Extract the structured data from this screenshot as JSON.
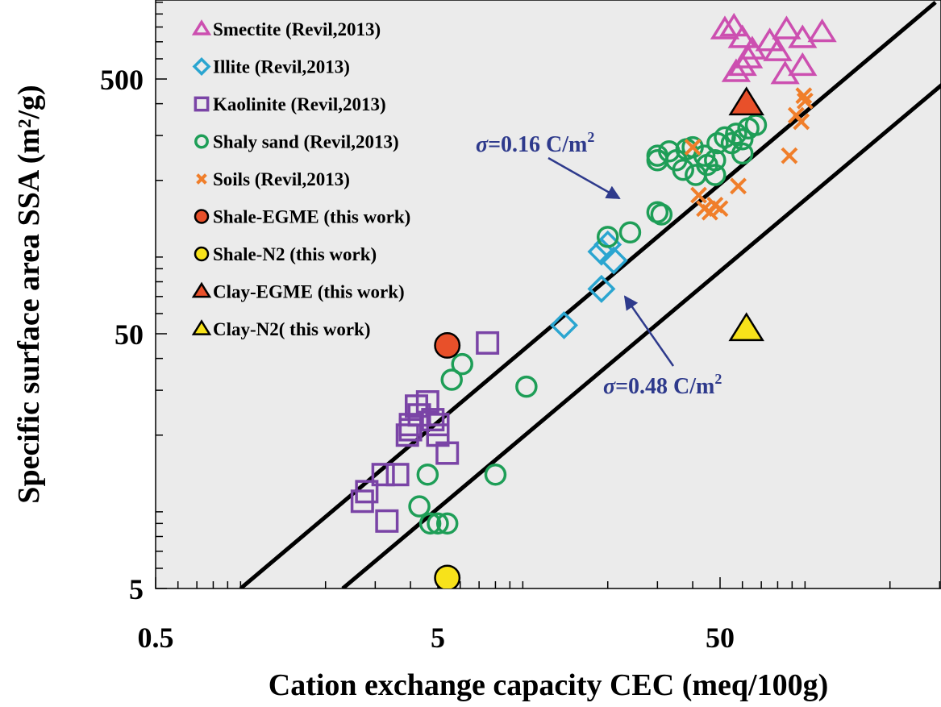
{
  "chart_data": {
    "type": "scatter",
    "xlabel": "Cation exchange capacity CEC (meq/100g)",
    "ylabel": "Specific surface area SSA (m²/g)",
    "xscale": "log",
    "yscale": "log",
    "xlim": [
      0.5,
      500
    ],
    "ylim": [
      5,
      1000
    ],
    "xticks": [
      {
        "value": 0.5,
        "label": "0.5"
      },
      {
        "value": 5,
        "label": "5"
      },
      {
        "value": 50,
        "label": "50"
      }
    ],
    "yticks": [
      {
        "value": 5,
        "label": "5"
      },
      {
        "value": 50,
        "label": "50"
      },
      {
        "value": 500,
        "label": "500"
      }
    ],
    "background": "#ebebeb",
    "grid": false,
    "legend_position": "top-left",
    "series": [
      {
        "name": "Smectite (Revil,2013)",
        "marker": "triangle-open",
        "color": "#cc4fb0",
        "points": [
          [
            52,
            780
          ],
          [
            56,
            800
          ],
          [
            60,
            720
          ],
          [
            65,
            650
          ],
          [
            63,
            600
          ],
          [
            75,
            700
          ],
          [
            86,
            780
          ],
          [
            80,
            640
          ],
          [
            98,
            720
          ],
          [
            115,
            760
          ],
          [
            98,
            560
          ],
          [
            85,
            520
          ],
          [
            57,
            530
          ],
          [
            60,
            560
          ]
        ]
      },
      {
        "name": "Illite (Revil,2013)",
        "marker": "diamond-open",
        "color": "#2aa5d0",
        "points": [
          [
            14,
            54
          ],
          [
            19,
            105
          ],
          [
            20,
            112
          ],
          [
            21,
            97
          ],
          [
            19,
            75
          ]
        ]
      },
      {
        "name": "Kaolinite (Revil,2013)",
        "marker": "square-open",
        "color": "#7a44a6",
        "points": [
          [
            7.5,
            46
          ],
          [
            4.6,
            27
          ],
          [
            4.2,
            26
          ],
          [
            4.3,
            24
          ],
          [
            4.8,
            23
          ],
          [
            5,
            22
          ],
          [
            5,
            20
          ],
          [
            4,
            21
          ],
          [
            4,
            22
          ],
          [
            3.9,
            20
          ],
          [
            5.4,
            17
          ],
          [
            3.2,
            14
          ],
          [
            3.6,
            14
          ],
          [
            2.8,
            12
          ],
          [
            2.7,
            11
          ],
          [
            3.3,
            9.2
          ]
        ]
      },
      {
        "name": "Shaly sand (Revil,2013)",
        "marker": "circle-open",
        "color": "#1e9e57",
        "points": [
          [
            6.1,
            38
          ],
          [
            5.6,
            33
          ],
          [
            10.3,
            31
          ],
          [
            4.6,
            14
          ],
          [
            8,
            14
          ],
          [
            4.3,
            10.5
          ],
          [
            4.7,
            9
          ],
          [
            5,
            9
          ],
          [
            5.4,
            9
          ],
          [
            20,
            120
          ],
          [
            24,
            125
          ],
          [
            30,
            150
          ],
          [
            31,
            147
          ],
          [
            30,
            240
          ],
          [
            30,
            250
          ],
          [
            33,
            260
          ],
          [
            38,
            265
          ],
          [
            40,
            270
          ],
          [
            35,
            240
          ],
          [
            37,
            220
          ],
          [
            41,
            210
          ],
          [
            44,
            250
          ],
          [
            45,
            230
          ],
          [
            48,
            240
          ],
          [
            48,
            210
          ],
          [
            52,
            295
          ],
          [
            55,
            280
          ],
          [
            49,
            280
          ],
          [
            57,
            305
          ],
          [
            60,
            290
          ],
          [
            60,
            255
          ],
          [
            63,
            320
          ],
          [
            67,
            330
          ]
        ]
      },
      {
        "name": "Soils (Revil,2013)",
        "marker": "x",
        "color": "#f07e2a",
        "points": [
          [
            42,
            175
          ],
          [
            44,
            155
          ],
          [
            46,
            150
          ],
          [
            48,
            160
          ],
          [
            50,
            155
          ],
          [
            58,
            190
          ],
          [
            40,
            270
          ],
          [
            88,
            250
          ],
          [
            97,
            340
          ],
          [
            93,
            360
          ],
          [
            100,
            410
          ],
          [
            99,
            430
          ]
        ]
      },
      {
        "name": "Shale-EGME (this work)",
        "marker": "circle-filled",
        "color": "#e8502a",
        "points": [
          [
            5.4,
            45
          ]
        ]
      },
      {
        "name": "Shale-N2 (this work)",
        "marker": "circle-filled",
        "color": "#f7e21a",
        "points": [
          [
            5.4,
            5.5
          ]
        ]
      },
      {
        "name": "Clay-EGME (this work)",
        "marker": "triangle-filled",
        "color": "#e8502a",
        "points": [
          [
            62,
            400
          ]
        ]
      },
      {
        "name": "Clay-N2( this work)",
        "marker": "triangle-filled",
        "color": "#f7e21a",
        "points": [
          [
            62,
            52
          ]
        ]
      }
    ],
    "lines": [
      {
        "label": "σ=0.16 C/m²",
        "color": "#000000",
        "points": [
          [
            1.0,
            5
          ],
          [
            290,
            1000
          ]
        ]
      },
      {
        "label": "σ=0.48 C/m²",
        "color": "#000000",
        "points": [
          [
            2.3,
            5
          ],
          [
            680,
            1000
          ]
        ]
      }
    ],
    "annotations": [
      {
        "label_key": "sigma1",
        "sigma": "σ",
        "text": "=0.16 C/m",
        "sup": "2",
        "color": "#2e3a8c",
        "arrow_to": [
          22,
          170
        ]
      },
      {
        "label_key": "sigma2",
        "sigma": "σ",
        "text": "=0.48 C/m",
        "sup": "2",
        "color": "#2e3a8c",
        "arrow_to": [
          23,
          70
        ]
      }
    ]
  }
}
